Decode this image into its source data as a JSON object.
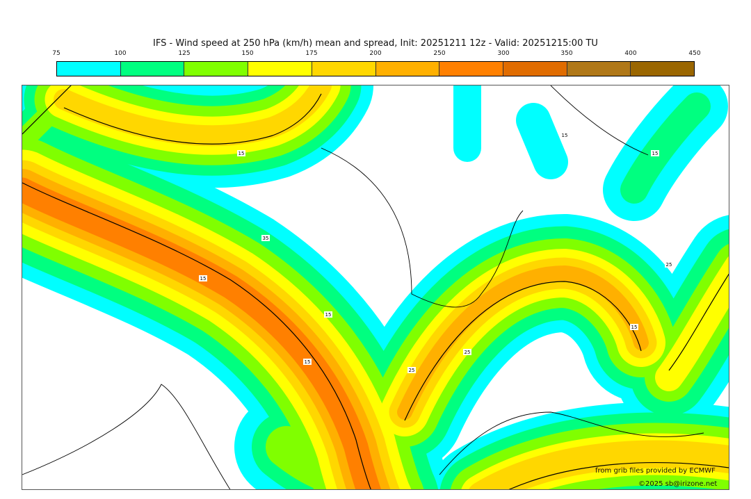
{
  "title": "IFS - Wind speed at 250 hPa (km/h) mean and spread, Init: 20251211 12z - Valid: 20251215:00 TU",
  "legend": {
    "ticks": [
      "75",
      "100",
      "125",
      "150",
      "175",
      "200",
      "250",
      "300",
      "350",
      "400",
      "450"
    ],
    "colors": [
      "#00ffff",
      "#00ff80",
      "#80ff00",
      "#ffff00",
      "#ffd700",
      "#ffb000",
      "#ff8000",
      "#e06c00",
      "#b07818",
      "#9a6600"
    ]
  },
  "contour_labels": [
    "15",
    "25",
    "35"
  ],
  "credits": {
    "source": "from grib files provided by ECMWF",
    "copyright": "©2025 sb@irizone.net"
  }
}
